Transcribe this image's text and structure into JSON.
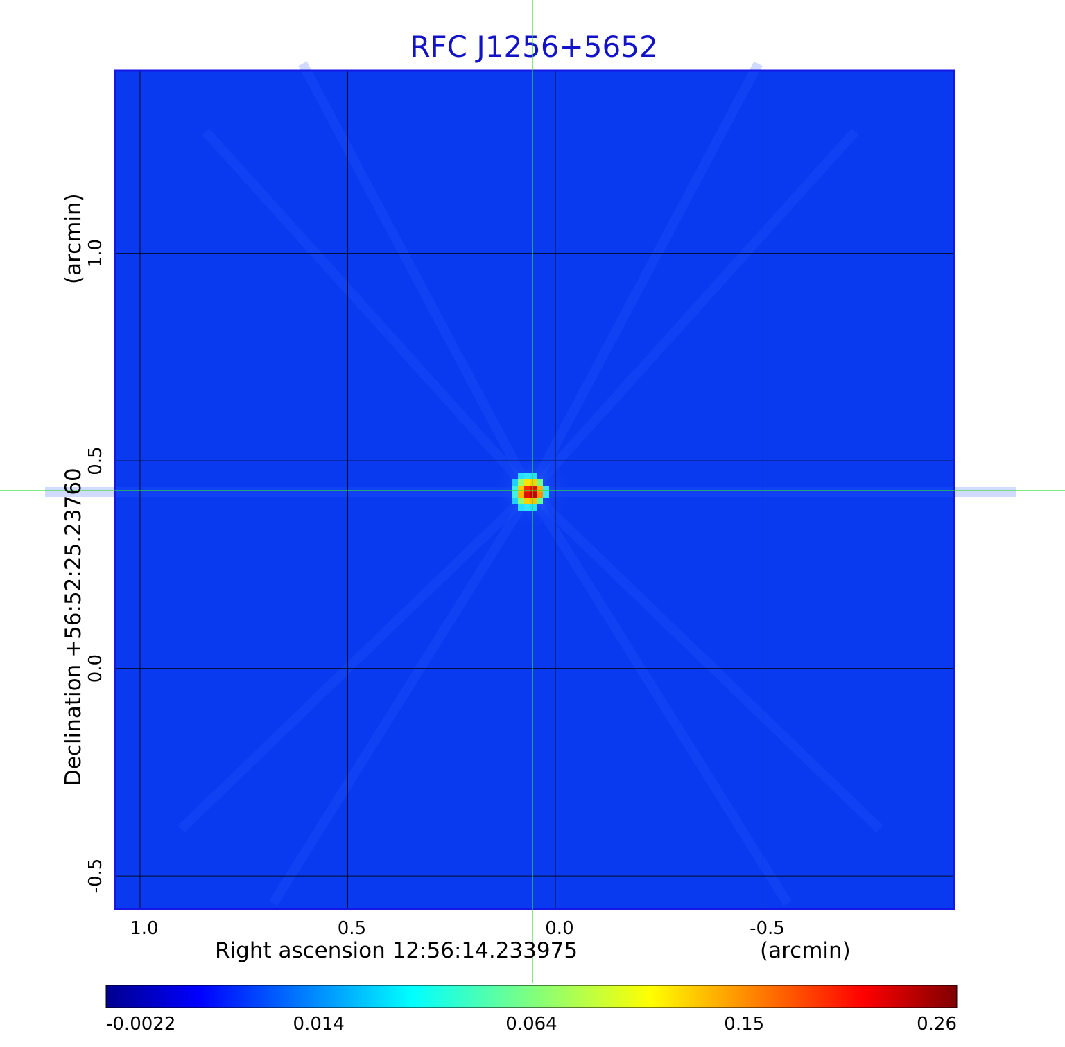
{
  "chart_data": {
    "type": "heatmap",
    "title": "RFC J1256+5652",
    "xlabel": "Right ascension  12:56:14.233975",
    "xunit": "(arcmin)",
    "ylabel": "Declination  +56:52:25.23760",
    "yunit": "(arcmin)",
    "xlim": [
      1.06,
      -0.96
    ],
    "ylim": [
      -0.58,
      1.44
    ],
    "x_ticks": [
      {
        "value": 1.0,
        "label": "1.0"
      },
      {
        "value": 0.5,
        "label": "0.5"
      },
      {
        "value": 0.0,
        "label": "0.0"
      },
      {
        "value": -0.5,
        "label": "-0.5"
      }
    ],
    "y_ticks": [
      {
        "value": 1.0,
        "label": "1.0"
      },
      {
        "value": 0.5,
        "label": "0.5"
      },
      {
        "value": 0.0,
        "label": "0.0"
      },
      {
        "value": -0.5,
        "label": "-0.5"
      }
    ],
    "grid": true,
    "source_peak": {
      "x": 0.06,
      "y": 0.425,
      "value": 0.26
    },
    "crosshair": {
      "x": 0.06,
      "y": 0.425
    },
    "background_level": -0.0022,
    "colorbar": {
      "ticks": [
        "-0.0022",
        "0.014",
        "0.064",
        "0.15",
        "0.26"
      ],
      "min": -0.0022,
      "max": 0.26,
      "colormap": "jet"
    }
  },
  "colors": {
    "title": "#1212c8",
    "frame": "#1616e6",
    "background_map": "#0a3af0",
    "grid": "#000000",
    "crosshair": "#33dd33"
  }
}
